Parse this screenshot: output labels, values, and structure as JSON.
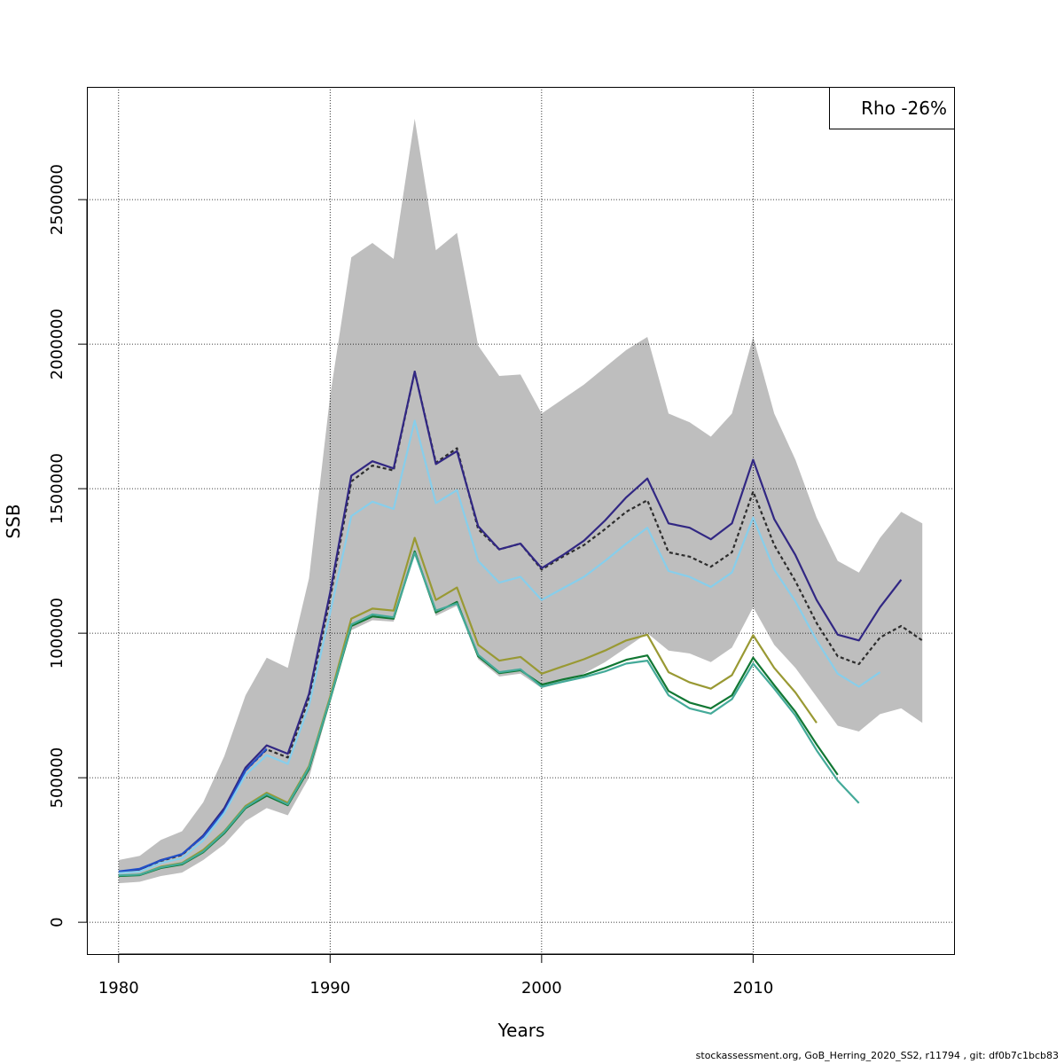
{
  "chart_data": {
    "type": "line",
    "title": "",
    "xlabel": "Years",
    "ylabel": "SSB",
    "xlim": [
      1978.5,
      2019.5
    ],
    "ylim": [
      -110000,
      2890000
    ],
    "x_ticks": [
      1980,
      1990,
      2000,
      2010
    ],
    "y_ticks": [
      0,
      500000,
      1000000,
      1500000,
      2000000,
      2500000
    ],
    "x_tick_labels": [
      "1980",
      "1990",
      "2000",
      "2010"
    ],
    "y_tick_labels": [
      "0",
      "500000",
      "1000000",
      "1500000",
      "2000000",
      "2500000"
    ],
    "grid": true,
    "legend_position": "top-right",
    "annotation": "Rho -26%",
    "confidence_band": {
      "color": "#bebebe",
      "x": [
        1980,
        1981,
        1982,
        1983,
        1984,
        1985,
        1986,
        1987,
        1988,
        1989,
        1990,
        1991,
        1992,
        1993,
        1994,
        1995,
        1996,
        1997,
        1998,
        1999,
        2000,
        2001,
        2002,
        2003,
        2004,
        2005,
        2006,
        2007,
        2008,
        2009,
        2010,
        2011,
        2012,
        2013,
        2014,
        2015,
        2016,
        2017,
        2018
      ],
      "lower": [
        135000,
        140000,
        160000,
        172000,
        215000,
        270000,
        350000,
        395000,
        370000,
        500000,
        760000,
        1010000,
        1045000,
        1040000,
        1270000,
        1060000,
        1095000,
        910000,
        850000,
        860000,
        810000,
        830000,
        860000,
        900000,
        950000,
        1000000,
        940000,
        930000,
        900000,
        950000,
        1090000,
        960000,
        880000,
        780000,
        680000,
        660000,
        720000,
        740000,
        690000
      ],
      "upper": [
        215000,
        230000,
        285000,
        315000,
        415000,
        575000,
        785000,
        915000,
        880000,
        1190000,
        1820000,
        2300000,
        2350000,
        2295000,
        2780000,
        2325000,
        2385000,
        1995000,
        1890000,
        1895000,
        1760000,
        1810000,
        1860000,
        1920000,
        1980000,
        2025000,
        1760000,
        1730000,
        1680000,
        1760000,
        2025000,
        1760000,
        1600000,
        1400000,
        1250000,
        1210000,
        1330000,
        1420000,
        1380000
      ]
    },
    "series": [
      {
        "color": "#2d2d2d",
        "dash": "4,3",
        "x": [
          1980,
          1981,
          1982,
          1983,
          1984,
          1985,
          1986,
          1987,
          1988,
          1989,
          1990,
          1991,
          1992,
          1993,
          1994,
          1995,
          1996,
          1997,
          1998,
          1999,
          2000,
          2001,
          2002,
          2003,
          2004,
          2005,
          2006,
          2007,
          2008,
          2009,
          2010,
          2011,
          2012,
          2013,
          2014,
          2015,
          2016,
          2017,
          2018
        ],
        "values": [
          172000,
          182000,
          212000,
          233000,
          298000,
          390000,
          525000,
          598000,
          570000,
          775000,
          1120000,
          1525000,
          1580000,
          1563000,
          1905000,
          1590000,
          1640000,
          1360000,
          1290000,
          1310000,
          1220000,
          1265000,
          1305000,
          1360000,
          1420000,
          1460000,
          1280000,
          1265000,
          1230000,
          1280000,
          1490000,
          1305000,
          1180000,
          1035000,
          920000,
          893000,
          985000,
          1025000,
          975000
        ]
      },
      {
        "color": "#312783",
        "dash": "",
        "x": [
          1980,
          1981,
          1982,
          1983,
          1984,
          1985,
          1986,
          1987,
          1988,
          1989,
          1990,
          1991,
          1992,
          1993,
          1994,
          1995,
          1996,
          1997,
          1998,
          1999,
          2000,
          2001,
          2002,
          2003,
          2004,
          2005,
          2006,
          2007,
          2008,
          2009,
          2010,
          2011,
          2012,
          2013,
          2014,
          2015,
          2016,
          2017
        ],
        "values": [
          172000,
          182000,
          215000,
          235000,
          300000,
          395000,
          535000,
          612000,
          583000,
          790000,
          1140000,
          1545000,
          1595000,
          1570000,
          1905000,
          1585000,
          1630000,
          1370000,
          1290000,
          1310000,
          1225000,
          1270000,
          1320000,
          1390000,
          1470000,
          1535000,
          1380000,
          1365000,
          1325000,
          1380000,
          1600000,
          1395000,
          1270000,
          1115000,
          995000,
          975000,
          1090000,
          1185000
        ]
      },
      {
        "color": "#2150c8",
        "dash": "",
        "x": [
          1980,
          1981,
          1982,
          1983,
          1984,
          1985,
          1986,
          1987
        ],
        "values": [
          176000,
          185000,
          214000,
          236000,
          296000,
          385000,
          525000,
          600000
        ]
      },
      {
        "color": "#87ceeb",
        "dash": "",
        "x": [
          1980,
          1981,
          1982,
          1983,
          1984,
          1985,
          1986,
          1987,
          1988,
          1989,
          1990,
          1991,
          1992,
          1993,
          1994,
          1995,
          1996,
          1997,
          1998,
          1999,
          2000,
          2001,
          2002,
          2003,
          2004,
          2005,
          2006,
          2007,
          2008,
          2009,
          2010,
          2011,
          2012,
          2013,
          2014,
          2015,
          2016
        ],
        "values": [
          170000,
          176000,
          205000,
          222000,
          283000,
          378000,
          510000,
          578000,
          548000,
          750000,
          1070000,
          1405000,
          1455000,
          1430000,
          1735000,
          1450000,
          1495000,
          1250000,
          1175000,
          1195000,
          1115000,
          1155000,
          1195000,
          1250000,
          1310000,
          1365000,
          1215000,
          1195000,
          1160000,
          1210000,
          1400000,
          1220000,
          1110000,
          975000,
          860000,
          815000,
          865000
        ]
      },
      {
        "color": "#999933",
        "dash": "",
        "x": [
          1980,
          1981,
          1982,
          1983,
          1984,
          1985,
          1986,
          1987,
          1988,
          1989,
          1990,
          1991,
          1992,
          1993,
          1994,
          1995,
          1996,
          1997,
          1998,
          1999,
          2000,
          2001,
          2002,
          2003,
          2004,
          2005,
          2006,
          2007,
          2008,
          2009,
          2010,
          2011,
          2012,
          2013
        ],
        "values": [
          160000,
          165000,
          192000,
          205000,
          250000,
          315000,
          402000,
          448000,
          413000,
          540000,
          780000,
          1050000,
          1085000,
          1078000,
          1330000,
          1115000,
          1158000,
          960000,
          905000,
          918000,
          860000,
          885000,
          910000,
          940000,
          975000,
          995000,
          865000,
          830000,
          808000,
          855000,
          993000,
          880000,
          795000,
          690000
        ]
      },
      {
        "color": "#117733",
        "dash": "",
        "x": [
          1980,
          1981,
          1982,
          1983,
          1984,
          1985,
          1986,
          1987,
          1988,
          1989,
          1990,
          1991,
          1992,
          1993,
          1994,
          1995,
          1996,
          1997,
          1998,
          1999,
          2000,
          2001,
          2002,
          2003,
          2004,
          2005,
          2006,
          2007,
          2008,
          2009,
          2010,
          2011,
          2012,
          2013,
          2014
        ],
        "values": [
          160000,
          163000,
          188000,
          200000,
          242000,
          308000,
          395000,
          438000,
          405000,
          530000,
          770000,
          1025000,
          1058000,
          1050000,
          1283000,
          1072000,
          1108000,
          920000,
          862000,
          872000,
          822000,
          840000,
          855000,
          880000,
          908000,
          923000,
          800000,
          760000,
          740000,
          785000,
          915000,
          820000,
          728000,
          615000,
          510000
        ]
      },
      {
        "color": "#44aa99",
        "dash": "",
        "x": [
          1980,
          1981,
          1982,
          1983,
          1984,
          1985,
          1986,
          1987,
          1988,
          1989,
          1990,
          1991,
          1992,
          1993,
          1994,
          1995,
          1996,
          1997,
          1998,
          1999,
          2000,
          2001,
          2002,
          2003,
          2004,
          2005,
          2006,
          2007,
          2008,
          2009,
          2010,
          2011,
          2012,
          2013,
          2014,
          2015
        ],
        "values": [
          162000,
          165000,
          190000,
          203000,
          245000,
          312000,
          398000,
          443000,
          408000,
          535000,
          773000,
          1030000,
          1065000,
          1055000,
          1278000,
          1078000,
          1103000,
          925000,
          865000,
          875000,
          815000,
          832000,
          848000,
          868000,
          895000,
          905000,
          785000,
          740000,
          722000,
          772000,
          895000,
          808000,
          715000,
          595000,
          490000,
          412000
        ]
      }
    ]
  },
  "footer": {
    "text": "stockassessment.org, GoB_Herring_2020_SS2, r11794 , git: df0b7c1bcb83"
  }
}
